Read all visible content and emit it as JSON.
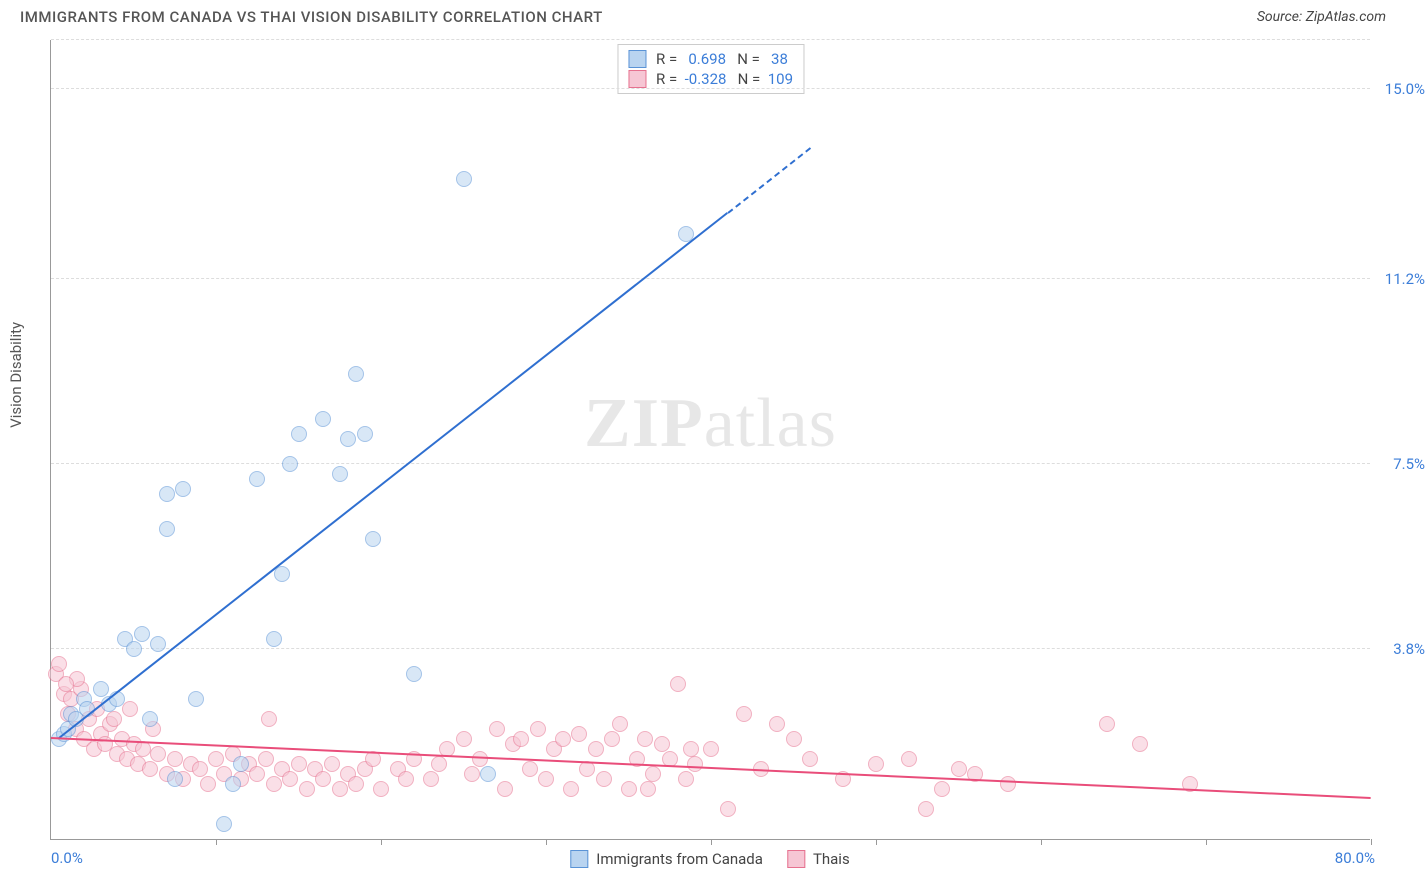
{
  "header": {
    "title": "IMMIGRANTS FROM CANADA VS THAI VISION DISABILITY CORRELATION CHART",
    "source_prefix": "Source: ",
    "source": "ZipAtlas.com"
  },
  "watermark": {
    "zip": "ZIP",
    "atlas": "atlas"
  },
  "chart": {
    "type": "scatter",
    "background_color": "#ffffff",
    "grid_color": "#dddddd",
    "axis_color": "#999999",
    "xlim": [
      0,
      80
    ],
    "ylim": [
      0,
      16
    ],
    "y_gridlines": [
      3.8,
      7.5,
      11.2,
      15.0
    ],
    "y_tick_labels": [
      "3.8%",
      "7.5%",
      "11.2%",
      "15.0%"
    ],
    "xtick_positions": [
      10,
      20,
      30,
      40,
      50,
      60,
      70,
      80
    ],
    "xaxis_min_label": "0.0%",
    "xaxis_max_label": "80.0%",
    "yaxis_title": "Vision Disability",
    "tick_label_color": "#3b7dd8",
    "axis_title_color": "#555555",
    "marker_radius": 8,
    "marker_opacity": 0.55,
    "series": [
      {
        "name": "Immigrants from Canada",
        "fill": "#b9d4f0",
        "stroke": "#5a93d6",
        "trend_color": "#2f6fd0",
        "r": 0.698,
        "n": 38,
        "trend_from": [
          0.5,
          2.0
        ],
        "trend_to": [
          41,
          12.5
        ],
        "trend_dashed_to": [
          46,
          13.8
        ],
        "points": [
          [
            0.5,
            2.0
          ],
          [
            0.8,
            2.1
          ],
          [
            1.0,
            2.2
          ],
          [
            1.2,
            2.5
          ],
          [
            1.5,
            2.4
          ],
          [
            2.0,
            2.8
          ],
          [
            2.2,
            2.6
          ],
          [
            3.0,
            3.0
          ],
          [
            3.5,
            2.7
          ],
          [
            4.0,
            2.8
          ],
          [
            4.5,
            4.0
          ],
          [
            5.0,
            3.8
          ],
          [
            5.5,
            4.1
          ],
          [
            6.0,
            2.4
          ],
          [
            6.5,
            3.9
          ],
          [
            7.0,
            6.9
          ],
          [
            7.5,
            1.2
          ],
          [
            8.0,
            7.0
          ],
          [
            8.8,
            2.8
          ],
          [
            10.5,
            0.3
          ],
          [
            11.0,
            1.1
          ],
          [
            11.5,
            1.5
          ],
          [
            12.5,
            7.2
          ],
          [
            13.5,
            4.0
          ],
          [
            14.0,
            5.3
          ],
          [
            14.5,
            7.5
          ],
          [
            15.0,
            8.1
          ],
          [
            16.5,
            8.4
          ],
          [
            17.5,
            7.3
          ],
          [
            18.0,
            8.0
          ],
          [
            18.5,
            9.3
          ],
          [
            19.0,
            8.1
          ],
          [
            22.0,
            3.3
          ],
          [
            25.0,
            13.2
          ],
          [
            26.5,
            1.3
          ],
          [
            38.5,
            12.1
          ],
          [
            19.5,
            6.0
          ],
          [
            7.0,
            6.2
          ]
        ]
      },
      {
        "name": "Thais",
        "fill": "#f6c6d4",
        "stroke": "#e6718f",
        "trend_color": "#e94d7a",
        "r": -0.328,
        "n": 109,
        "trend_from": [
          0,
          2.0
        ],
        "trend_to": [
          80,
          0.8
        ],
        "points": [
          [
            0.3,
            3.3
          ],
          [
            0.5,
            3.5
          ],
          [
            0.8,
            2.9
          ],
          [
            1.0,
            2.5
          ],
          [
            1.2,
            2.8
          ],
          [
            1.5,
            2.2
          ],
          [
            1.8,
            3.0
          ],
          [
            2.0,
            2.0
          ],
          [
            2.3,
            2.4
          ],
          [
            2.6,
            1.8
          ],
          [
            3.0,
            2.1
          ],
          [
            3.3,
            1.9
          ],
          [
            3.6,
            2.3
          ],
          [
            4.0,
            1.7
          ],
          [
            4.3,
            2.0
          ],
          [
            4.6,
            1.6
          ],
          [
            5.0,
            1.9
          ],
          [
            5.3,
            1.5
          ],
          [
            5.6,
            1.8
          ],
          [
            6.0,
            1.4
          ],
          [
            6.5,
            1.7
          ],
          [
            7.0,
            1.3
          ],
          [
            7.5,
            1.6
          ],
          [
            8.0,
            1.2
          ],
          [
            8.5,
            1.5
          ],
          [
            9.0,
            1.4
          ],
          [
            9.5,
            1.1
          ],
          [
            10.0,
            1.6
          ],
          [
            10.5,
            1.3
          ],
          [
            11.0,
            1.7
          ],
          [
            11.5,
            1.2
          ],
          [
            12.0,
            1.5
          ],
          [
            12.5,
            1.3
          ],
          [
            13.0,
            1.6
          ],
          [
            13.5,
            1.1
          ],
          [
            14.0,
            1.4
          ],
          [
            14.5,
            1.2
          ],
          [
            15.0,
            1.5
          ],
          [
            15.5,
            1.0
          ],
          [
            16.0,
            1.4
          ],
          [
            16.5,
            1.2
          ],
          [
            17.0,
            1.5
          ],
          [
            17.5,
            1.0
          ],
          [
            18.0,
            1.3
          ],
          [
            18.5,
            1.1
          ],
          [
            19.0,
            1.4
          ],
          [
            19.5,
            1.6
          ],
          [
            20.0,
            1.0
          ],
          [
            21.0,
            1.4
          ],
          [
            22.0,
            1.6
          ],
          [
            23.0,
            1.2
          ],
          [
            24.0,
            1.8
          ],
          [
            25.0,
            2.0
          ],
          [
            25.5,
            1.3
          ],
          [
            26.0,
            1.6
          ],
          [
            27.0,
            2.2
          ],
          [
            27.5,
            1.0
          ],
          [
            28.0,
            1.9
          ],
          [
            28.5,
            2.0
          ],
          [
            29.0,
            1.4
          ],
          [
            29.5,
            2.2
          ],
          [
            30.0,
            1.2
          ],
          [
            30.5,
            1.8
          ],
          [
            31.0,
            2.0
          ],
          [
            31.5,
            1.0
          ],
          [
            32.0,
            2.1
          ],
          [
            32.5,
            1.4
          ],
          [
            33.0,
            1.8
          ],
          [
            33.5,
            1.2
          ],
          [
            34.0,
            2.0
          ],
          [
            34.5,
            2.3
          ],
          [
            35.0,
            1.0
          ],
          [
            35.5,
            1.6
          ],
          [
            36.0,
            2.0
          ],
          [
            36.5,
            1.3
          ],
          [
            37.0,
            1.9
          ],
          [
            37.5,
            1.6
          ],
          [
            38.0,
            3.1
          ],
          [
            38.5,
            1.2
          ],
          [
            39.0,
            1.5
          ],
          [
            40.0,
            1.8
          ],
          [
            41.0,
            0.6
          ],
          [
            42.0,
            2.5
          ],
          [
            43.0,
            1.4
          ],
          [
            44.0,
            2.3
          ],
          [
            45.0,
            2.0
          ],
          [
            46.0,
            1.6
          ],
          [
            48.0,
            1.2
          ],
          [
            50.0,
            1.5
          ],
          [
            52.0,
            1.6
          ],
          [
            53.0,
            0.6
          ],
          [
            54.0,
            1.0
          ],
          [
            55.0,
            1.4
          ],
          [
            56.0,
            1.3
          ],
          [
            58.0,
            1.1
          ],
          [
            64.0,
            2.3
          ],
          [
            66.0,
            1.9
          ],
          [
            69.0,
            1.1
          ],
          [
            13.2,
            2.4
          ],
          [
            38.8,
            1.8
          ],
          [
            23.5,
            1.5
          ],
          [
            36.2,
            1.0
          ],
          [
            21.5,
            1.2
          ],
          [
            6.2,
            2.2
          ],
          [
            4.8,
            2.6
          ],
          [
            2.8,
            2.6
          ],
          [
            1.6,
            3.2
          ],
          [
            0.9,
            3.1
          ],
          [
            3.8,
            2.4
          ]
        ]
      }
    ],
    "stats_box": {
      "r_label": "R =",
      "n_label": "N =",
      "rows": [
        {
          "swatch_fill": "#b9d4f0",
          "swatch_stroke": "#5a93d6",
          "r": "0.698",
          "n": "38"
        },
        {
          "swatch_fill": "#f6c6d4",
          "swatch_stroke": "#e6718f",
          "r": "-0.328",
          "n": "109"
        }
      ]
    },
    "bottom_legend": [
      {
        "swatch_fill": "#b9d4f0",
        "swatch_stroke": "#5a93d6",
        "label": "Immigrants from Canada"
      },
      {
        "swatch_fill": "#f6c6d4",
        "swatch_stroke": "#e6718f",
        "label": "Thais"
      }
    ]
  }
}
